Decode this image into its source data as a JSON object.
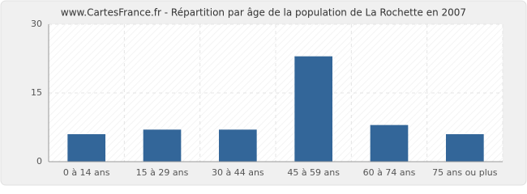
{
  "chart_data": {
    "type": "bar",
    "title": "www.CartesFrance.fr - Répartition par âge de la population de La Rochette en 2007",
    "categories": [
      "0 à 14 ans",
      "15 à 29 ans",
      "30 à 44 ans",
      "45 à 59 ans",
      "60 à 74 ans",
      "75 ans ou plus"
    ],
    "values": [
      6,
      7,
      7,
      23,
      8,
      6
    ],
    "color": "#336699",
    "ylim": [
      0,
      30
    ],
    "yticks": [
      0,
      15,
      30
    ],
    "grid": true
  }
}
